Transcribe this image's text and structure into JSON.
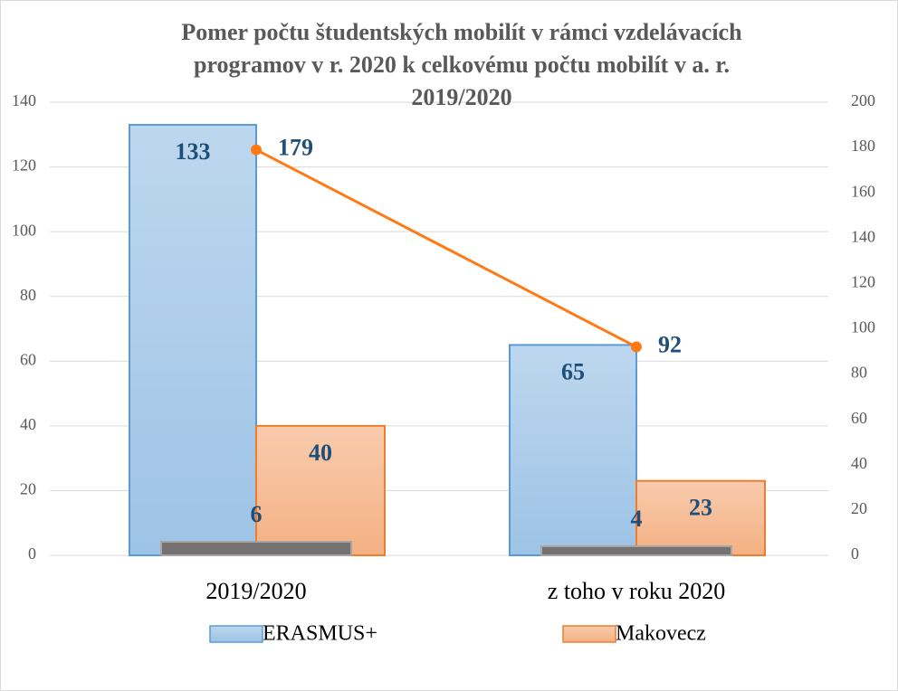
{
  "chart_data": {
    "type": "bar",
    "title": [
      "Pomer počtu študentských mobilít v rámci vzdelávacích",
      "programov v r. 2020 k celkovému počtu mobilít v a. r.",
      "2019/2020"
    ],
    "categories": [
      "2019/2020",
      "z toho v roku 2020"
    ],
    "series": [
      {
        "name": "ERASMUS+",
        "type": "bar",
        "color": "#9dc3e6",
        "values": [
          133,
          65
        ]
      },
      {
        "name": "Makovecz",
        "type": "bar",
        "color": "#f4b183",
        "values": [
          40,
          23
        ]
      },
      {
        "type": "bar",
        "axis": "y2",
        "color": "#767171",
        "values": [
          6,
          4
        ]
      },
      {
        "type": "line",
        "axis": "y2",
        "color": "#fe7a15",
        "values": [
          179,
          92
        ]
      }
    ],
    "ylim": [
      0,
      140
    ],
    "yticks": [
      0,
      20,
      40,
      60,
      80,
      100,
      120,
      140
    ],
    "y2lim": [
      0,
      200
    ],
    "y2ticks": [
      0,
      20,
      40,
      60,
      80,
      100,
      120,
      140,
      160,
      180,
      200
    ],
    "grid": true,
    "legend": "bottom"
  }
}
